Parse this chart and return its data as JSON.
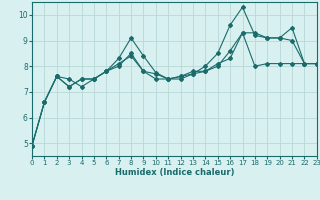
{
  "title": "",
  "xlabel": "Humidex (Indice chaleur)",
  "bg_color": "#d8f0f0",
  "line_color": "#1a6b6b",
  "grid_color": "#b8d8d8",
  "xlim": [
    0,
    23
  ],
  "ylim": [
    4.5,
    10.5
  ],
  "xticks": [
    0,
    1,
    2,
    3,
    4,
    5,
    6,
    7,
    8,
    9,
    10,
    11,
    12,
    13,
    14,
    15,
    16,
    17,
    18,
    19,
    20,
    21,
    22,
    23
  ],
  "yticks": [
    5,
    6,
    7,
    8,
    9,
    10
  ],
  "series": [
    {
      "x": [
        0,
        1,
        2,
        3,
        4,
        5,
        6,
        7,
        8,
        9,
        10,
        11,
        12,
        13,
        14,
        15,
        16,
        17,
        18,
        19,
        20,
        21,
        22,
        23
      ],
      "y": [
        4.9,
        6.6,
        7.6,
        7.5,
        7.2,
        7.5,
        7.8,
        8.1,
        8.4,
        7.8,
        7.7,
        7.5,
        7.6,
        7.7,
        7.8,
        8.0,
        8.6,
        9.3,
        9.3,
        9.1,
        9.1,
        9.0,
        8.1,
        8.1
      ]
    },
    {
      "x": [
        0,
        1,
        2,
        3,
        4,
        5,
        6,
        7,
        8,
        9,
        10,
        11,
        12,
        13,
        14,
        15,
        16,
        17,
        18,
        19,
        20,
        21,
        22,
        23
      ],
      "y": [
        4.9,
        6.6,
        7.6,
        7.2,
        7.5,
        7.5,
        7.8,
        8.3,
        9.1,
        8.4,
        7.75,
        7.5,
        7.5,
        7.7,
        8.0,
        8.5,
        9.6,
        10.3,
        9.2,
        9.1,
        9.1,
        9.5,
        8.1,
        8.1
      ]
    },
    {
      "x": [
        0,
        1,
        2,
        3,
        4,
        5,
        6,
        7,
        8,
        9,
        10,
        11,
        12,
        13,
        14,
        15,
        16,
        17,
        18,
        19,
        20,
        21,
        22,
        23
      ],
      "y": [
        4.9,
        6.6,
        7.6,
        7.2,
        7.5,
        7.5,
        7.8,
        8.0,
        8.5,
        7.8,
        7.5,
        7.5,
        7.6,
        7.8,
        7.8,
        8.1,
        8.3,
        9.3,
        8.0,
        8.1,
        8.1,
        8.1,
        8.1,
        8.1
      ]
    }
  ]
}
